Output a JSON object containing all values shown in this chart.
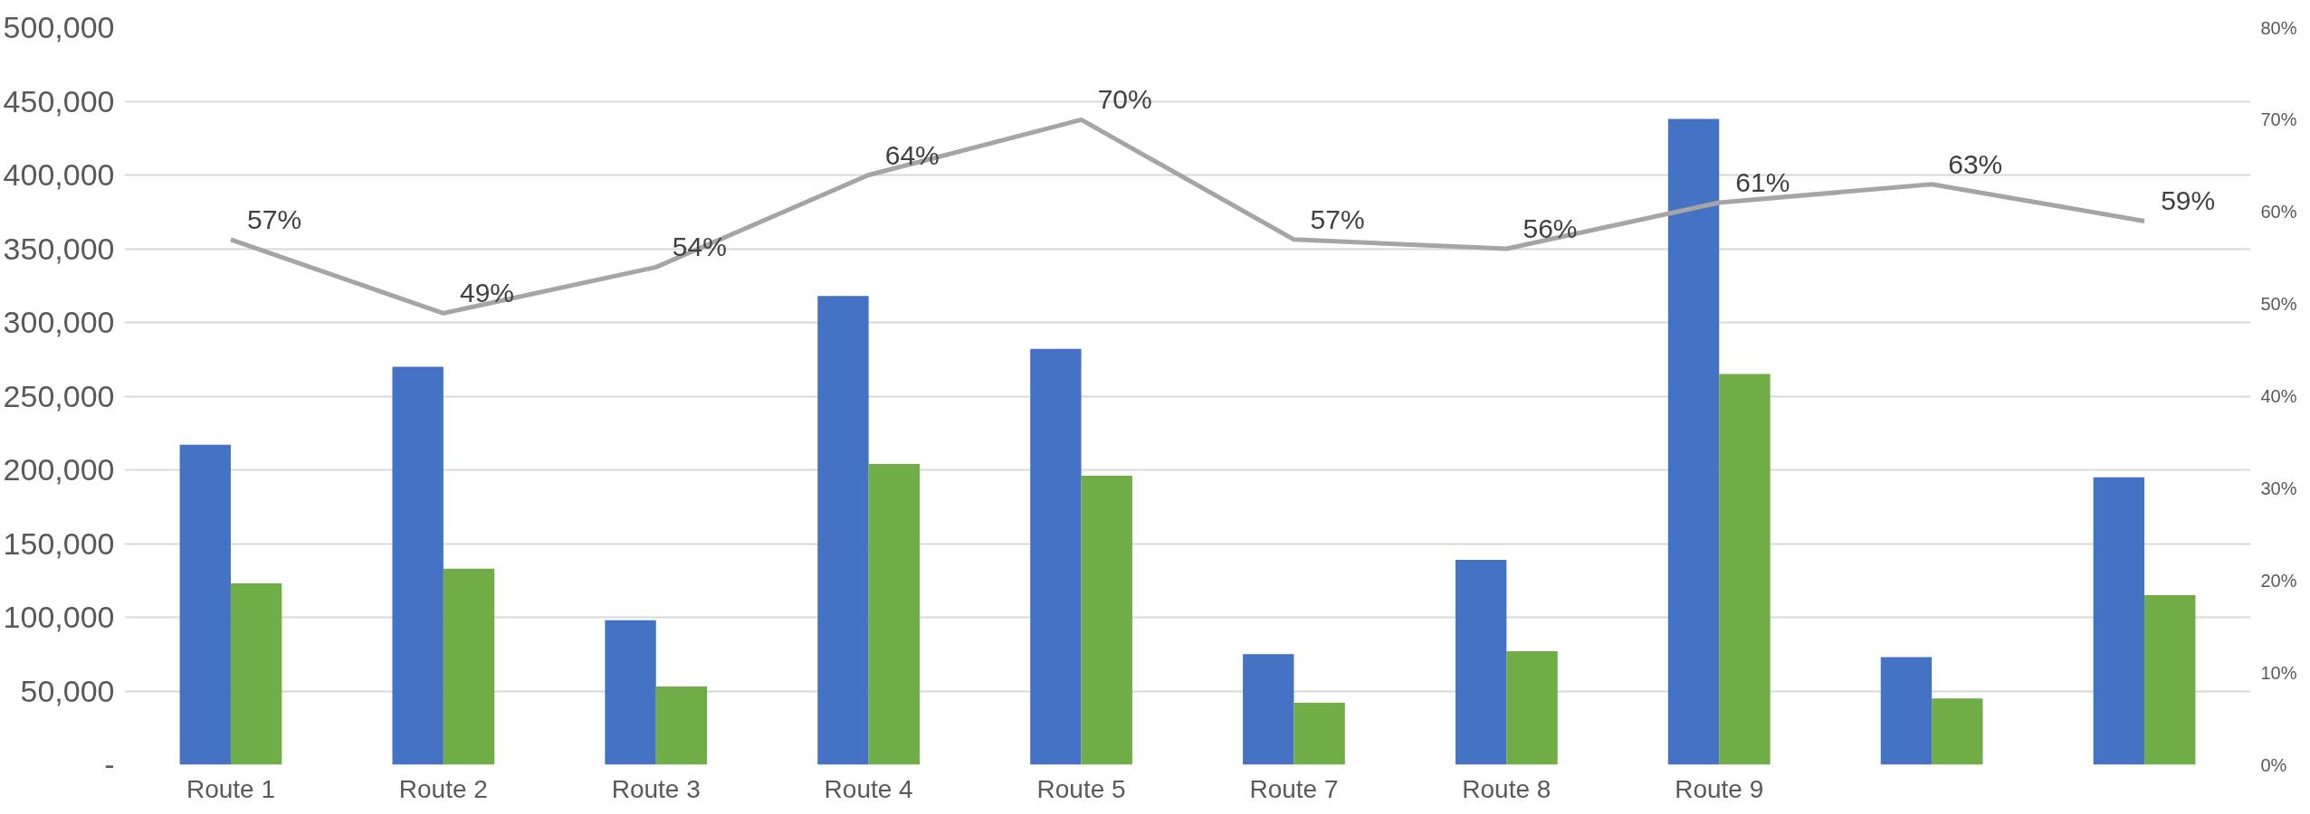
{
  "chart_data": {
    "type": "bar",
    "categories": [
      "Route 1",
      "Route 2",
      "Route 3",
      "Route 4",
      "Route 5",
      "Route 7",
      "Route 8",
      "Route 9",
      null,
      null
    ],
    "series": [
      {
        "color": "#4472c4",
        "values": [
          217000,
          270000,
          98000,
          318000,
          282000,
          75000,
          139000,
          438000,
          73000,
          195000
        ]
      },
      {
        "color": "#70ad47",
        "values": [
          123000,
          133000,
          53000,
          204000,
          196000,
          42000,
          77000,
          265000,
          45000,
          115000
        ]
      },
      {
        "type": "line",
        "axis": "y2",
        "color": "#a5a5a5",
        "values": [
          57,
          49,
          54,
          64,
          70,
          57,
          56,
          61,
          63,
          59
        ],
        "value_labels": [
          "57%",
          "49%",
          "54%",
          "64%",
          "70%",
          "57%",
          "56%",
          "61%",
          "63%",
          "59%"
        ]
      }
    ],
    "ylim": [
      0,
      500000
    ],
    "yticks": [
      {
        "value": 0,
        "label": "-"
      },
      {
        "value": 50000,
        "label": "50,000"
      },
      {
        "value": 100000,
        "label": "100,000"
      },
      {
        "value": 150000,
        "label": "150,000"
      },
      {
        "value": 200000,
        "label": "200,000"
      },
      {
        "value": 250000,
        "label": "250,000"
      },
      {
        "value": 300000,
        "label": "300,000"
      },
      {
        "value": 350000,
        "label": "350,000"
      },
      {
        "value": 400000,
        "label": "400,000"
      },
      {
        "value": 450000,
        "label": "450,000"
      },
      {
        "value": 500000,
        "label": "500,000"
      }
    ],
    "y2lim": [
      0,
      80
    ],
    "y2ticks": [
      {
        "value": 0,
        "label": "0%"
      },
      {
        "value": 10,
        "label": "10%"
      },
      {
        "value": 20,
        "label": "20%"
      },
      {
        "value": 30,
        "label": "30%"
      },
      {
        "value": 40,
        "label": "40%"
      },
      {
        "value": 50,
        "label": "50%"
      },
      {
        "value": 60,
        "label": "60%"
      },
      {
        "value": 70,
        "label": "70%"
      },
      {
        "value": 80,
        "label": "80%"
      }
    ],
    "grid": "y",
    "marker": "none"
  }
}
